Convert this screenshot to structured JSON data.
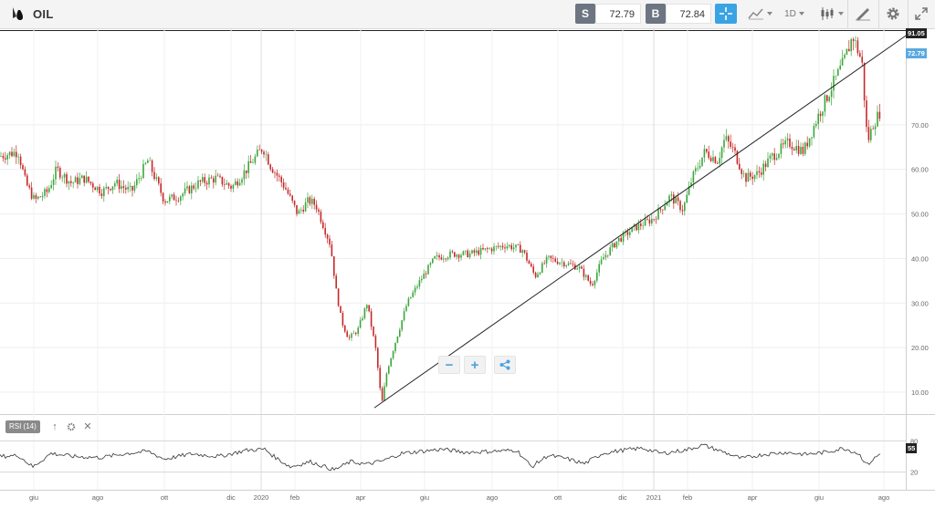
{
  "header": {
    "symbol": "OIL",
    "sell_label": "S",
    "sell_price": "72.79",
    "buy_label": "B",
    "buy_price": "72.84",
    "timeframe": "1D"
  },
  "rsi_panel": {
    "label": "RSI (14)",
    "current": "55",
    "levels": [
      "80",
      "20"
    ]
  },
  "colors": {
    "up": "#3ca63c",
    "down": "#c62828",
    "accent": "#3aa3e3",
    "current_price_tag": "#5aa9e0",
    "max_price_tag": "#222222"
  },
  "icons": [
    "oil-drop-icon",
    "crosshair-icon",
    "chart-style-icon",
    "candlestick-icon",
    "drawing-tools-icon",
    "gear-icon",
    "expand-icon",
    "share-icon",
    "arrow-up-icon",
    "close-icon"
  ],
  "chart_data": {
    "type": "candlestick",
    "x_tick_labels": [
      "giu",
      "ago",
      "ott",
      "dic",
      "2020",
      "feb",
      "apr",
      "giu",
      "ago",
      "ott",
      "dic",
      "2021",
      "feb",
      "apr",
      "giu",
      "ago"
    ],
    "y_tick_labels": [
      "10.00",
      "20.00",
      "30.00",
      "40.00",
      "50.00",
      "60.00",
      "70.00"
    ],
    "ylim": [
      5.5,
      91.05
    ],
    "max_label": "91.05",
    "current_label": "72.79",
    "waypoints": [
      [
        0,
        63
      ],
      [
        20,
        64
      ],
      [
        28,
        57
      ],
      [
        38,
        53
      ],
      [
        52,
        55
      ],
      [
        62,
        60
      ],
      [
        78,
        57
      ],
      [
        92,
        58
      ],
      [
        112,
        55
      ],
      [
        126,
        57
      ],
      [
        144,
        55
      ],
      [
        162,
        62
      ],
      [
        180,
        53
      ],
      [
        196,
        54
      ],
      [
        218,
        57
      ],
      [
        236,
        58
      ],
      [
        254,
        56
      ],
      [
        270,
        60
      ],
      [
        288,
        65
      ],
      [
        296,
        61
      ],
      [
        312,
        56
      ],
      [
        326,
        50
      ],
      [
        338,
        53
      ],
      [
        346,
        52
      ],
      [
        362,
        43
      ],
      [
        368,
        33
      ],
      [
        374,
        26
      ],
      [
        382,
        22
      ],
      [
        392,
        24
      ],
      [
        402,
        30
      ],
      [
        412,
        19
      ],
      [
        418,
        7
      ],
      [
        424,
        15
      ],
      [
        434,
        22
      ],
      [
        446,
        30
      ],
      [
        460,
        35
      ],
      [
        476,
        40
      ],
      [
        494,
        41
      ],
      [
        514,
        41
      ],
      [
        534,
        42
      ],
      [
        554,
        43
      ],
      [
        572,
        42
      ],
      [
        586,
        36
      ],
      [
        600,
        40
      ],
      [
        618,
        39
      ],
      [
        634,
        38
      ],
      [
        648,
        34
      ],
      [
        660,
        40
      ],
      [
        676,
        44
      ],
      [
        696,
        47
      ],
      [
        716,
        49
      ],
      [
        734,
        54
      ],
      [
        748,
        51
      ],
      [
        758,
        58
      ],
      [
        772,
        64
      ],
      [
        786,
        62
      ],
      [
        794,
        67
      ],
      [
        804,
        64
      ],
      [
        816,
        58
      ],
      [
        830,
        59
      ],
      [
        846,
        63
      ],
      [
        864,
        66
      ],
      [
        880,
        64
      ],
      [
        896,
        72
      ],
      [
        912,
        79
      ],
      [
        924,
        84
      ],
      [
        934,
        90
      ],
      [
        944,
        84
      ],
      [
        950,
        66
      ],
      [
        956,
        70
      ],
      [
        964,
        73
      ]
    ],
    "trendline": [
      [
        410,
        6.5
      ],
      [
        992,
        90
      ]
    ],
    "rsi_waypoints": [
      [
        0,
        50
      ],
      [
        20,
        52
      ],
      [
        36,
        30
      ],
      [
        56,
        56
      ],
      [
        80,
        50
      ],
      [
        110,
        48
      ],
      [
        140,
        56
      ],
      [
        162,
        60
      ],
      [
        180,
        45
      ],
      [
        210,
        55
      ],
      [
        240,
        50
      ],
      [
        270,
        62
      ],
      [
        290,
        64
      ],
      [
        300,
        50
      ],
      [
        318,
        30
      ],
      [
        340,
        40
      ],
      [
        366,
        24
      ],
      [
        384,
        40
      ],
      [
        402,
        35
      ],
      [
        420,
        42
      ],
      [
        440,
        56
      ],
      [
        462,
        60
      ],
      [
        484,
        64
      ],
      [
        510,
        58
      ],
      [
        540,
        60
      ],
      [
        566,
        62
      ],
      [
        582,
        30
      ],
      [
        600,
        52
      ],
      [
        620,
        46
      ],
      [
        640,
        36
      ],
      [
        660,
        56
      ],
      [
        682,
        62
      ],
      [
        704,
        66
      ],
      [
        724,
        56
      ],
      [
        750,
        62
      ],
      [
        770,
        72
      ],
      [
        790,
        60
      ],
      [
        812,
        46
      ],
      [
        836,
        54
      ],
      [
        860,
        58
      ],
      [
        882,
        54
      ],
      [
        904,
        58
      ],
      [
        924,
        66
      ],
      [
        940,
        56
      ],
      [
        950,
        34
      ],
      [
        956,
        44
      ],
      [
        964,
        55
      ]
    ]
  }
}
